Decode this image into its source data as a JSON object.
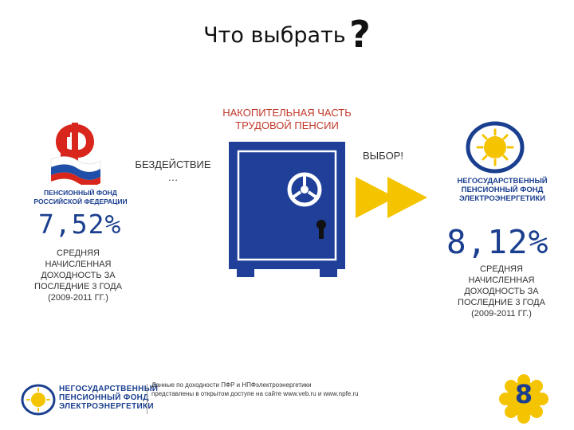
{
  "header": {
    "title": "Что выбрать",
    "question_mark": "?"
  },
  "center": {
    "label_line1": "НАКОПИТЕЛЬНАЯ ЧАСТЬ",
    "label_line2": "ТРУДОВОЙ ПЕНСИИ",
    "inaction_label": "БЕЗДЕЙСТВИЕ",
    "inaction_ellipsis": "…",
    "choice_label": "ВЫБОР!"
  },
  "left": {
    "org_caption_line1": "ПЕНСИОННЫЙ ФОНД",
    "org_caption_line2": "РОССИЙСКОЙ ФЕДЕРАЦИИ",
    "percent": "7,52%",
    "desc_lines": [
      "СРЕДНЯЯ",
      "НАЧИСЛЕННАЯ",
      "ДОХОДНОСТЬ ЗА",
      "ПОСЛЕДНИЕ 3 ГОДА",
      "(2009-2011 ГГ.)"
    ]
  },
  "right": {
    "org_caption_lines": [
      "НЕГОСУДАРСТВЕННЫЙ",
      "ПЕНСИОННЫЙ ФОНД",
      "ЭЛЕКТРОЭНЕРГЕТИКИ"
    ],
    "percent": "8,12%",
    "desc_lines": [
      "СРЕДНЯЯ",
      "НАЧИСЛЕННАЯ",
      "ДОХОДНОСТЬ ЗА",
      "ПОСЛЕДНИЕ 3 ГОДА",
      "(2009-2011 ГГ.)"
    ]
  },
  "footer": {
    "org_caption_lines": [
      "НЕГОСУДАРСТВЕННЫЙ",
      "ПЕНСИОННЫЙ ФОНД",
      "ЭЛЕКТРОЭНЕРГЕТИКИ"
    ],
    "note_line1": "Данные по доходности ПФР и НПФэлектроэнергетики",
    "note_line2": "представлены в открытом доступе на сайте www.veb.ru и www.npfe.ru",
    "page_number": "8"
  },
  "colors": {
    "brand_blue": "#1b3f8f",
    "safe_blue": "#1f3f99",
    "accent_yellow": "#f5c400",
    "label_red": "#c0392b"
  },
  "icons": {
    "pfr_logo": "pfr-logo-icon",
    "npf_logo": "npf-sun-logo-icon",
    "safe": "safe-icon",
    "arrows": "double-arrow-icon"
  }
}
